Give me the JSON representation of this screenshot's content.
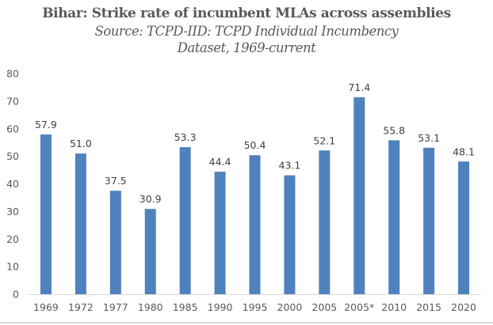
{
  "chart_data": {
    "type": "bar",
    "title": "Bihar: Strike rate of incumbent MLAs across assemblies",
    "subtitle": "Source: TCPD-IID: TCPD Individual Incumbency Dataset, 1969-current",
    "xlabel": "",
    "ylabel": "",
    "categories": [
      "1969",
      "1972",
      "1977",
      "1980",
      "1985",
      "1990",
      "1995",
      "2000",
      "2005",
      "2005*",
      "2010",
      "2015",
      "2020"
    ],
    "values": [
      57.9,
      51.0,
      37.5,
      30.9,
      53.3,
      44.4,
      50.4,
      43.1,
      52.1,
      71.4,
      55.8,
      53.1,
      48.1
    ],
    "data_labels": [
      "57.9",
      "51.0",
      "37.5",
      "30.9",
      "53.3",
      "44.4",
      "50.4",
      "43.1",
      "52.1",
      "71.4",
      "55.8",
      "53.1",
      "48.1"
    ],
    "ylim": [
      0,
      80
    ],
    "yticks": [
      0,
      10,
      20,
      30,
      40,
      50,
      60,
      70,
      80
    ],
    "grid": false,
    "legend": "none",
    "bar_color": "#4F81BD"
  }
}
